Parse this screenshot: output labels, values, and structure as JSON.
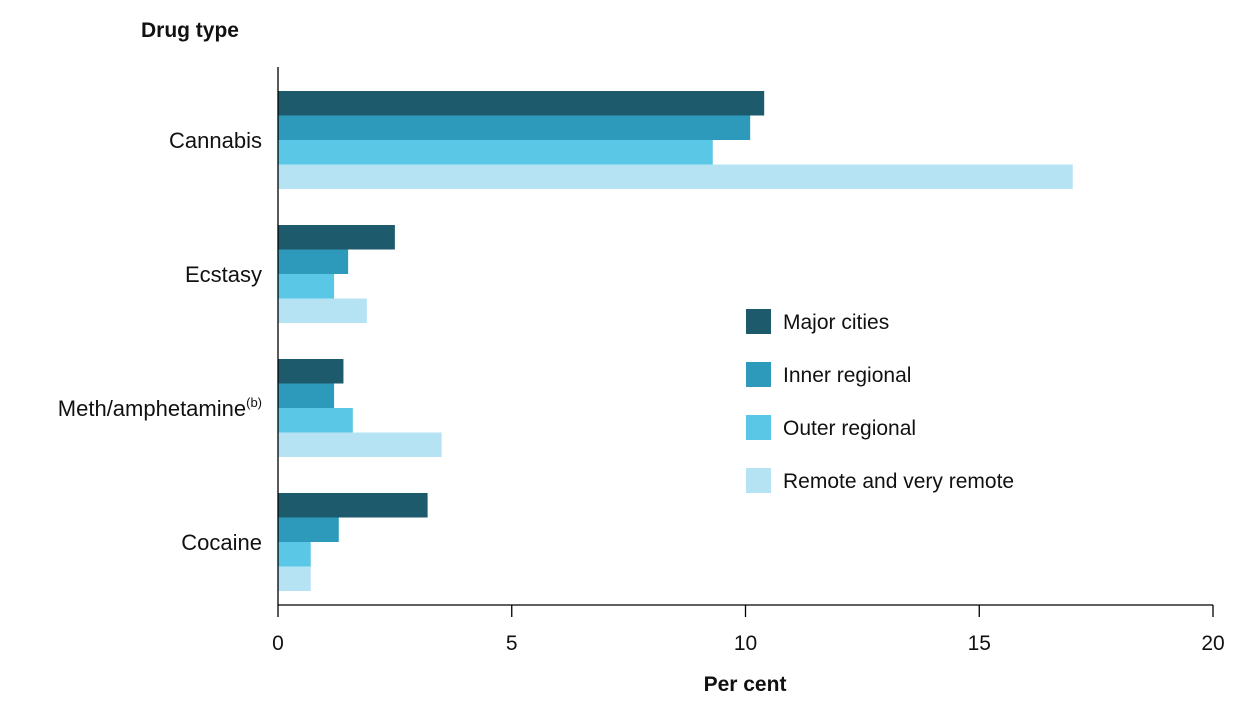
{
  "chart_data": {
    "type": "bar",
    "orientation": "horizontal",
    "ylabel": "Drug type",
    "xlabel": "Per cent",
    "xlim": [
      0,
      20
    ],
    "xticks": [
      0,
      5,
      10,
      15,
      20
    ],
    "grid": false,
    "legend_position": "right",
    "categories": [
      {
        "label": "Cannabis",
        "superscript": ""
      },
      {
        "label": "Ecstasy",
        "superscript": ""
      },
      {
        "label": "Meth/amphetamine",
        "superscript": "(b)"
      },
      {
        "label": "Cocaine",
        "superscript": ""
      }
    ],
    "series": [
      {
        "name": "Major cities",
        "color": "#1d5a6c",
        "values": [
          10.4,
          2.5,
          1.4,
          3.2
        ]
      },
      {
        "name": "Inner regional",
        "color": "#2e9abb",
        "values": [
          10.1,
          1.5,
          1.2,
          1.3
        ]
      },
      {
        "name": "Outer regional",
        "color": "#5bc7e6",
        "values": [
          9.3,
          1.2,
          1.6,
          0.7
        ]
      },
      {
        "name": "Remote and very remote",
        "color": "#b5e3f4",
        "values": [
          17.0,
          1.9,
          3.5,
          0.7
        ]
      }
    ]
  }
}
